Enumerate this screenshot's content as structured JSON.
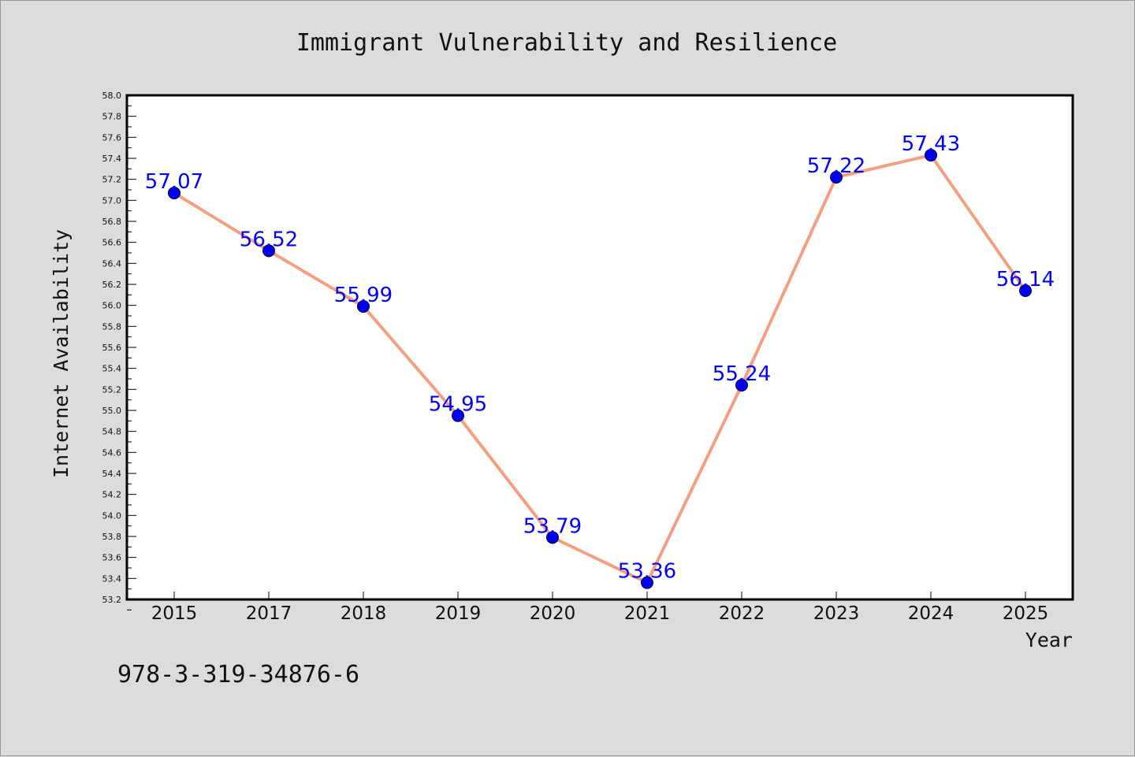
{
  "chart_data": {
    "type": "line",
    "title": "Immigrant Vulnerability and Resilience",
    "xlabel": "Year",
    "ylabel": "Internet Availability",
    "categories": [
      "2015",
      "2017",
      "2018",
      "2019",
      "2020",
      "2021",
      "2022",
      "2023",
      "2024",
      "2025"
    ],
    "series": [
      {
        "values": [
          57.07,
          56.52,
          55.99,
          54.95,
          53.79,
          53.36,
          55.24,
          57.22,
          57.43,
          56.14
        ]
      }
    ],
    "data_labels": [
      "57.07",
      "56.52",
      "55.99",
      "54.95",
      "53.79",
      "53.36",
      "55.24",
      "57.22",
      "57.43",
      "56.14"
    ],
    "ylim": [
      53.2,
      58.0
    ],
    "ytick_step": 0.2,
    "grid": false,
    "line_color": "#f4a080",
    "marker_color": "#0000ee",
    "label_color": "#0000ff"
  },
  "caption": "978-3-319-34876-6"
}
